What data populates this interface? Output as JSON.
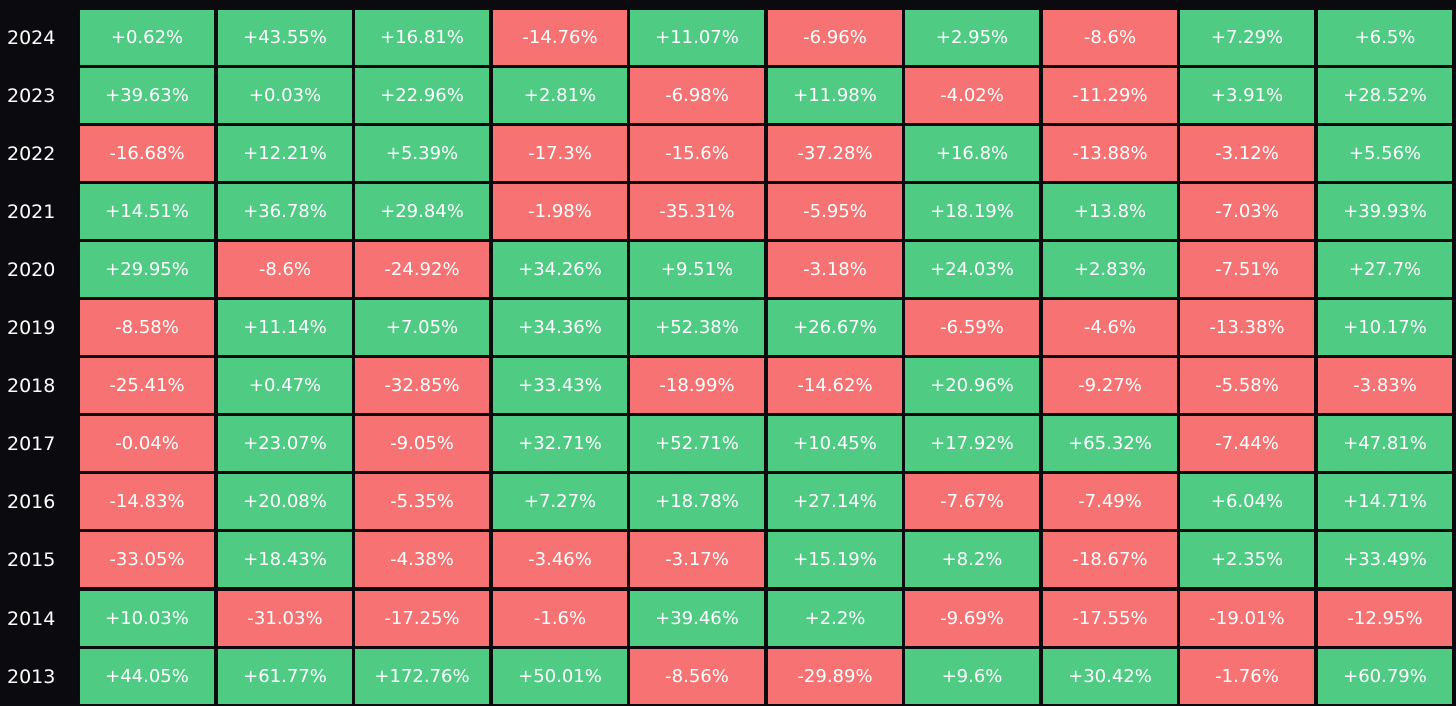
{
  "chart_data": {
    "type": "heatmap",
    "colors": {
      "positive": "#4fcb84",
      "negative": "#f77272",
      "background": "#0b0b0f",
      "text": "#ffffff"
    },
    "rows": [
      {
        "year": "2024",
        "values": [
          "+0.62%",
          "+43.55%",
          "+16.81%",
          "-14.76%",
          "+11.07%",
          "-6.96%",
          "+2.95%",
          "-8.6%",
          "+7.29%",
          "+6.5%"
        ]
      },
      {
        "year": "2023",
        "values": [
          "+39.63%",
          "+0.03%",
          "+22.96%",
          "+2.81%",
          "-6.98%",
          "+11.98%",
          "-4.02%",
          "-11.29%",
          "+3.91%",
          "+28.52%"
        ]
      },
      {
        "year": "2022",
        "values": [
          "-16.68%",
          "+12.21%",
          "+5.39%",
          "-17.3%",
          "-15.6%",
          "-37.28%",
          "+16.8%",
          "-13.88%",
          "-3.12%",
          "+5.56%"
        ]
      },
      {
        "year": "2021",
        "values": [
          "+14.51%",
          "+36.78%",
          "+29.84%",
          "-1.98%",
          "-35.31%",
          "-5.95%",
          "+18.19%",
          "+13.8%",
          "-7.03%",
          "+39.93%"
        ]
      },
      {
        "year": "2020",
        "values": [
          "+29.95%",
          "-8.6%",
          "-24.92%",
          "+34.26%",
          "+9.51%",
          "-3.18%",
          "+24.03%",
          "+2.83%",
          "-7.51%",
          "+27.7%"
        ]
      },
      {
        "year": "2019",
        "values": [
          "-8.58%",
          "+11.14%",
          "+7.05%",
          "+34.36%",
          "+52.38%",
          "+26.67%",
          "-6.59%",
          "-4.6%",
          "-13.38%",
          "+10.17%"
        ]
      },
      {
        "year": "2018",
        "values": [
          "-25.41%",
          "+0.47%",
          "-32.85%",
          "+33.43%",
          "-18.99%",
          "-14.62%",
          "+20.96%",
          "-9.27%",
          "-5.58%",
          "-3.83%"
        ]
      },
      {
        "year": "2017",
        "values": [
          "-0.04%",
          "+23.07%",
          "-9.05%",
          "+32.71%",
          "+52.71%",
          "+10.45%",
          "+17.92%",
          "+65.32%",
          "-7.44%",
          "+47.81%"
        ]
      },
      {
        "year": "2016",
        "values": [
          "-14.83%",
          "+20.08%",
          "-5.35%",
          "+7.27%",
          "+18.78%",
          "+27.14%",
          "-7.67%",
          "-7.49%",
          "+6.04%",
          "+14.71%"
        ]
      },
      {
        "year": "2015",
        "values": [
          "-33.05%",
          "+18.43%",
          "-4.38%",
          "-3.46%",
          "-3.17%",
          "+15.19%",
          "+8.2%",
          "-18.67%",
          "+2.35%",
          "+33.49%"
        ]
      },
      {
        "year": "2014",
        "values": [
          "+10.03%",
          "-31.03%",
          "-17.25%",
          "-1.6%",
          "+39.46%",
          "+2.2%",
          "-9.69%",
          "-17.55%",
          "-19.01%",
          "-12.95%"
        ]
      },
      {
        "year": "2013",
        "values": [
          "+44.05%",
          "+61.77%",
          "+172.76%",
          "+50.01%",
          "-8.56%",
          "-29.89%",
          "+9.6%",
          "+30.42%",
          "-1.76%",
          "+60.79%"
        ]
      }
    ]
  }
}
